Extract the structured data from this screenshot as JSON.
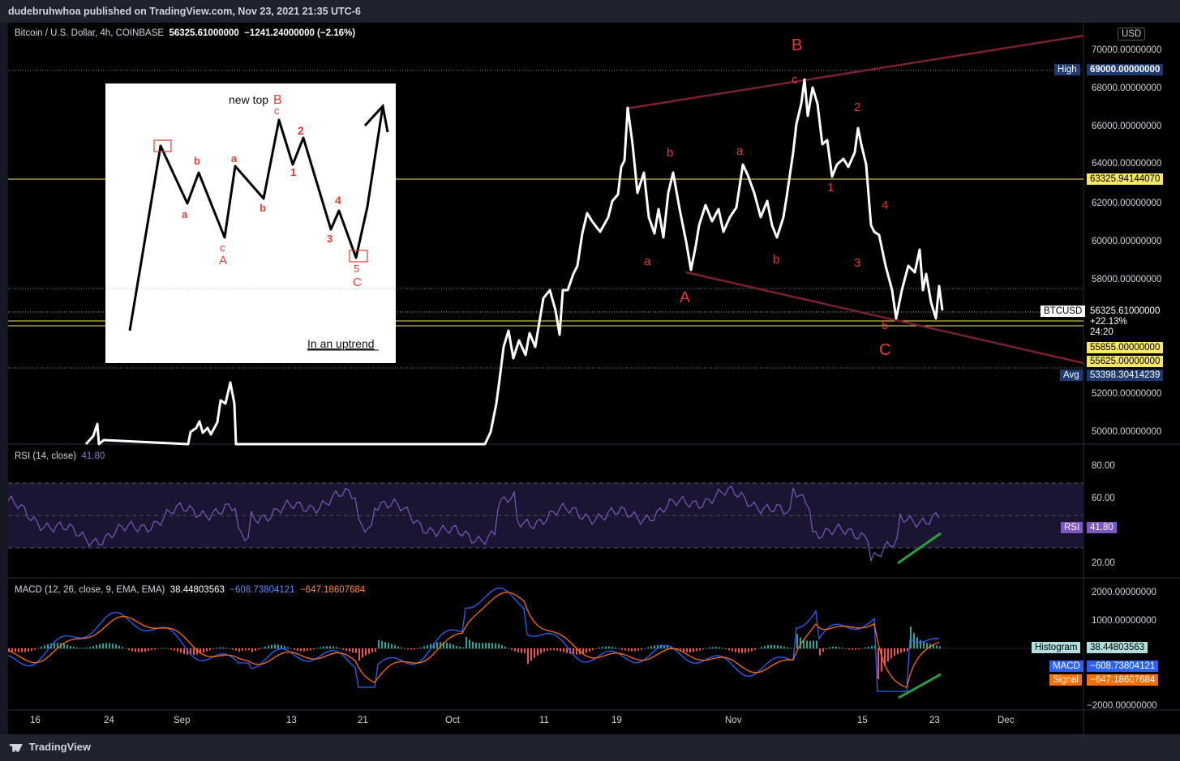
{
  "header": {
    "published": "dudebruhwhoa published on TradingView.com, Nov 23, 2021 21:35 UTC-6"
  },
  "footer": {
    "brand": "TradingView"
  },
  "price_legend": {
    "symbol": "Bitcoin / U.S. Dollar, 4h, COINBASE",
    "price": "56325.61000000",
    "change": "−1241.24000000 (−2.16%)"
  },
  "currency": "USD",
  "price_axis": [
    "70000.00000000",
    "68000.00000000",
    "66000.00000000",
    "64000.00000000",
    "62000.00000000",
    "60000.00000000",
    "58000.00000000",
    "52000.00000000",
    "50000.00000000"
  ],
  "price_tags": {
    "high_label": "High",
    "high_value": "69000.00000000",
    "level1": "63325.94144070",
    "symbol_label": "BTCUSD",
    "current": "56325.61000000",
    "current_pct": "+22.13%",
    "current_time": "24:20",
    "level2": "55855.00000000",
    "level3": "55625.00000000",
    "avg_label": "Avg",
    "avg_value": "53398.30414239"
  },
  "waves": {
    "B_big": "B",
    "A_big": "A",
    "C_big": "C",
    "c_top": "c",
    "b1": "b",
    "a1": "a",
    "a2": "a",
    "b2": "b",
    "n2": "2",
    "n1": "1",
    "n4": "4",
    "n3": "3",
    "n5": "5"
  },
  "inset": {
    "new_top": "new top",
    "B": "B",
    "c1": "c",
    "n2": "2",
    "n1": "1",
    "b1": "b",
    "a1": "a",
    "a2": "a",
    "b2": "b",
    "c2": "c",
    "A": "A",
    "n4": "4",
    "n3": "3",
    "n5": "5",
    "C": "C",
    "caption": "In an uptrend"
  },
  "rsi": {
    "legend": "RSI (14, close)",
    "value": "41.80",
    "tag_label": "RSI",
    "axis": [
      "80.00",
      "60.00",
      "20.00"
    ]
  },
  "macd": {
    "legend": "MACD (12, 26, close, 9, EMA, EMA)",
    "hist": "38.44803563",
    "macd": "−608.73804121",
    "signal": "−647.18607684",
    "axis": [
      "2000.00000000",
      "1000.00000000",
      "−2000.00000000"
    ],
    "tag_hist": "Histogram",
    "tag_macd": "MACD",
    "tag_signal": "Signal"
  },
  "time_axis": [
    "16",
    "24",
    "Sep",
    "13",
    "21",
    "Oct",
    "11",
    "19",
    "Nov",
    "15",
    "23",
    "Dec"
  ],
  "colors": {
    "background": "#000000",
    "price_line": "#ffffff",
    "rsi": "#7e57c2",
    "macd": "#2962ff",
    "signal": "#ff6d00",
    "wave_label": "#e53935",
    "channel": "#7b2030",
    "level": "#f5e663"
  },
  "chart_data": {
    "type": "line",
    "series_price_points": [
      [
        "Sep 1",
        47000
      ],
      [
        "Sep 6",
        52900
      ],
      [
        "Sep 7",
        49000
      ],
      [
        "Oct 6",
        55000
      ],
      [
        "Oct 11",
        57500
      ],
      [
        "Oct 15",
        61500
      ],
      [
        "Oct 20",
        66900
      ],
      [
        "Oct 22",
        62200
      ],
      [
        "Oct 24",
        63500
      ],
      [
        "Oct 27",
        58500
      ],
      [
        "Oct 30",
        62200
      ],
      [
        "Nov 1",
        61500
      ],
      [
        "Nov 3",
        64000
      ],
      [
        "Nov 5",
        61500
      ],
      [
        "Nov 7",
        62000
      ],
      [
        "Nov 10",
        68600
      ],
      [
        "Nov 13",
        64500
      ],
      [
        "Nov 15",
        65700
      ],
      [
        "Nov 16",
        61000
      ],
      [
        "Nov 18",
        59000
      ],
      [
        "Nov 19",
        56500
      ],
      [
        "Nov 21",
        59800
      ],
      [
        "Nov 22",
        56600
      ],
      [
        "Nov 23",
        56325
      ]
    ],
    "high": 69000,
    "average": 53398.30414239,
    "levels": [
      63325.9414407,
      55855,
      55625
    ],
    "rsi_last": 41.8,
    "macd_last": {
      "macd": -608.73804121,
      "signal": -647.18607684,
      "histogram": 38.44803563
    }
  }
}
